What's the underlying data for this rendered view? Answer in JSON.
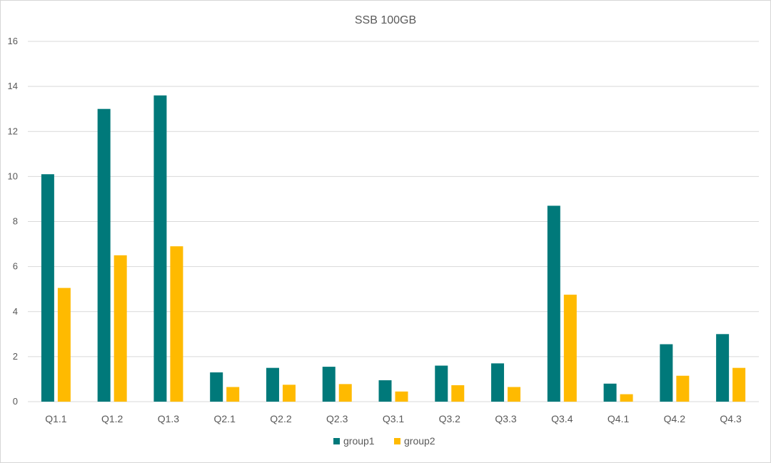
{
  "chart_data": {
    "type": "bar",
    "title": "SSB 100GB",
    "xlabel": "",
    "ylabel": "",
    "ylim": [
      0,
      16
    ],
    "yticks": [
      0,
      2,
      4,
      6,
      8,
      10,
      12,
      14,
      16
    ],
    "grid": true,
    "legend_position": "bottom",
    "categories": [
      "Q1.1",
      "Q1.2",
      "Q1.3",
      "Q2.1",
      "Q2.2",
      "Q2.3",
      "Q3.1",
      "Q3.2",
      "Q3.3",
      "Q3.4",
      "Q4.1",
      "Q4.2",
      "Q4.3"
    ],
    "series": [
      {
        "name": "group1",
        "color": "#00797a",
        "values": [
          10.1,
          13.0,
          13.6,
          1.3,
          1.5,
          1.55,
          0.95,
          1.6,
          1.7,
          8.7,
          0.8,
          2.55,
          3.0
        ]
      },
      {
        "name": "group2",
        "color": "#ffba00",
        "values": [
          5.05,
          6.5,
          6.9,
          0.65,
          0.75,
          0.78,
          0.45,
          0.73,
          0.65,
          4.75,
          0.33,
          1.15,
          1.5
        ]
      }
    ]
  },
  "colors": {
    "grid": "#d9d9d9",
    "text": "#595959",
    "border": "#d6d6d6"
  }
}
